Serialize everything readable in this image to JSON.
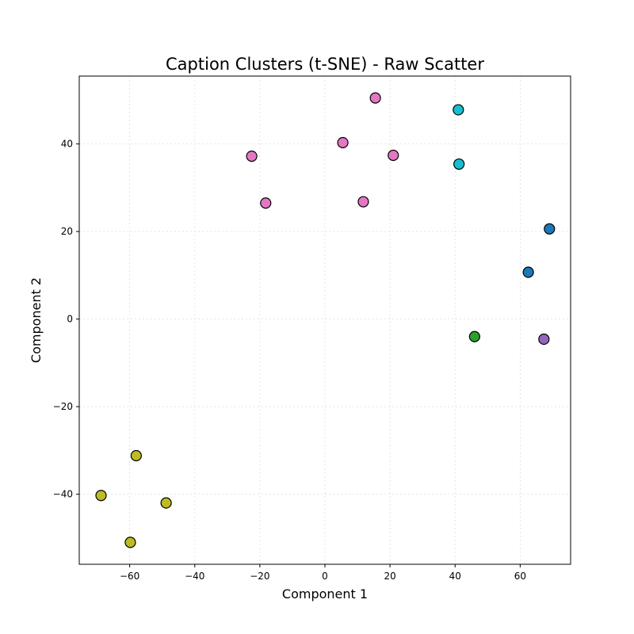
{
  "chart_data": {
    "type": "scatter",
    "title": "Caption Clusters (t-SNE) - Raw Scatter",
    "xlabel": "Component 1",
    "ylabel": "Component 2",
    "xlim": [
      -75.5,
      75.5
    ],
    "ylim": [
      -56,
      55.5
    ],
    "xticks": [
      -60,
      -40,
      -20,
      0,
      20,
      40,
      60
    ],
    "yticks": [
      -40,
      -20,
      0,
      20,
      40
    ],
    "xtick_labels": [
      "−60",
      "−40",
      "−20",
      "0",
      "20",
      "40",
      "60"
    ],
    "ytick_labels": [
      "−40",
      "−20",
      "0",
      "20",
      "40"
    ],
    "grid": true,
    "legend": "none",
    "points": [
      {
        "x": 15.5,
        "y": 50.5,
        "color": "#e377c2"
      },
      {
        "x": 5.5,
        "y": 40.3,
        "color": "#e377c2"
      },
      {
        "x": -22.5,
        "y": 37.2,
        "color": "#e377c2"
      },
      {
        "x": 21.0,
        "y": 37.4,
        "color": "#e377c2"
      },
      {
        "x": -18.2,
        "y": 26.5,
        "color": "#e377c2"
      },
      {
        "x": 11.8,
        "y": 26.8,
        "color": "#e377c2"
      },
      {
        "x": 41.0,
        "y": 47.8,
        "color": "#17becf"
      },
      {
        "x": 41.2,
        "y": 35.4,
        "color": "#17becf"
      },
      {
        "x": 69.0,
        "y": 20.6,
        "color": "#1f77b4"
      },
      {
        "x": 62.5,
        "y": 10.7,
        "color": "#1f77b4"
      },
      {
        "x": 46.0,
        "y": -4.0,
        "color": "#2ca02c"
      },
      {
        "x": 67.3,
        "y": -4.6,
        "color": "#9467bd"
      },
      {
        "x": -58.0,
        "y": -31.2,
        "color": "#bcbd22"
      },
      {
        "x": -68.8,
        "y": -40.3,
        "color": "#bcbd22"
      },
      {
        "x": -48.8,
        "y": -42.0,
        "color": "#bcbd22"
      },
      {
        "x": -59.8,
        "y": -51.0,
        "color": "#bcbd22"
      }
    ]
  }
}
